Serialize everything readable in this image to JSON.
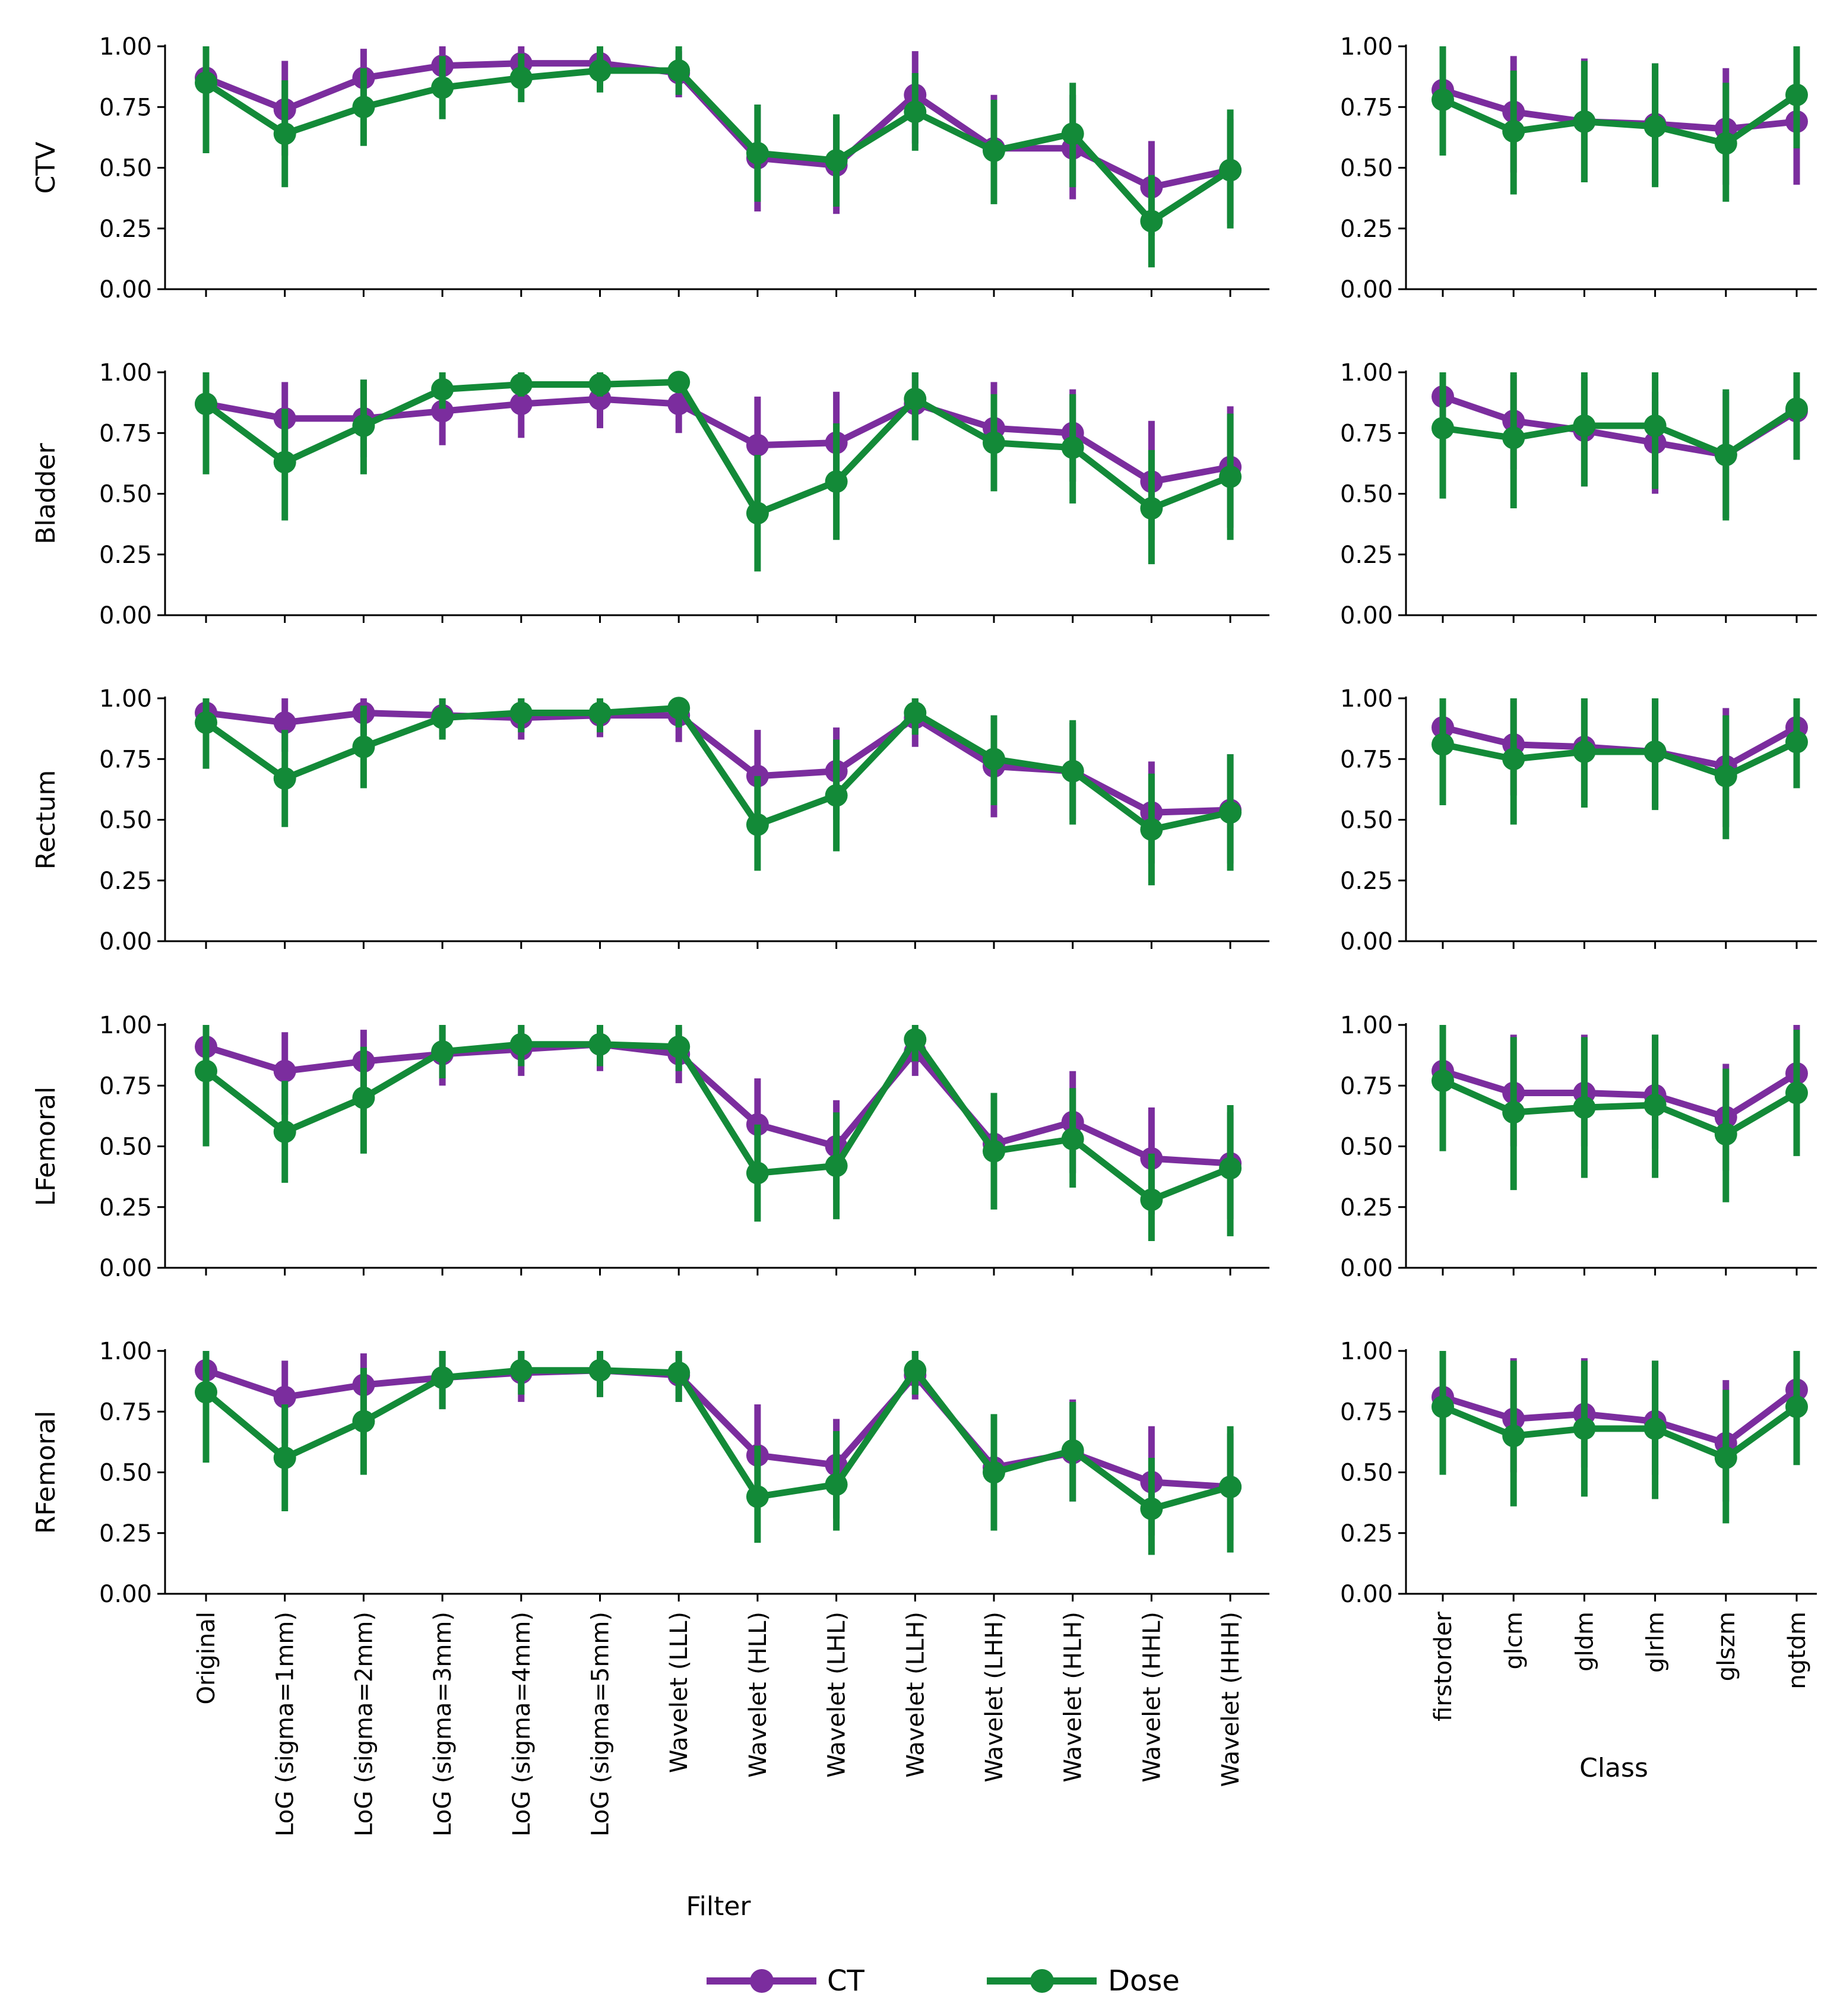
{
  "chart_data": {
    "type": "line",
    "xlabel_filter": "Filter",
    "xlabel_class": "Class",
    "legend": {
      "placement": "bottom",
      "entries": [
        {
          "label": "CT",
          "color": "#7B2D9E"
        },
        {
          "label": "Dose",
          "color": "#138A38"
        }
      ]
    },
    "ylim": [
      0,
      1
    ],
    "yticks": [
      "0.00",
      "0.25",
      "0.50",
      "0.75",
      "1.00"
    ],
    "grid": false,
    "filter_categories": [
      "Original",
      "LoG (sigma=1mm)",
      "LoG (sigma=2mm)",
      "LoG (sigma=3mm)",
      "LoG (sigma=4mm)",
      "LoG (sigma=5mm)",
      "Wavelet (LLL)",
      "Wavelet (HLL)",
      "Wavelet (LHL)",
      "Wavelet (LLH)",
      "Wavelet (LHH)",
      "Wavelet (HLH)",
      "Wavelet (HHL)",
      "Wavelet (HHH)"
    ],
    "class_categories": [
      "firstorder",
      "glcm",
      "gldm",
      "glrlm",
      "glszm",
      "ngtdm"
    ],
    "rows": [
      {
        "label": "CTV",
        "filter": {
          "CT": {
            "mean": [
              0.87,
              0.74,
              0.87,
              0.92,
              0.93,
              0.93,
              0.89,
              0.54,
              0.51,
              0.8,
              0.58,
              0.58,
              0.42,
              0.49
            ],
            "low": [
              0.6,
              0.55,
              0.72,
              0.84,
              0.86,
              0.87,
              0.79,
              0.32,
              0.31,
              0.6,
              0.37,
              0.37,
              0.22,
              0.27
            ],
            "high": [
              1.0,
              0.94,
              0.99,
              1.0,
              1.0,
              1.0,
              0.98,
              0.76,
              0.71,
              0.98,
              0.8,
              0.8,
              0.61,
              0.7
            ]
          },
          "Dose": {
            "mean": [
              0.85,
              0.64,
              0.75,
              0.83,
              0.87,
              0.9,
              0.9,
              0.56,
              0.53,
              0.73,
              0.57,
              0.64,
              0.28,
              0.49
            ],
            "low": [
              0.56,
              0.42,
              0.59,
              0.7,
              0.77,
              0.81,
              0.8,
              0.36,
              0.34,
              0.57,
              0.35,
              0.42,
              0.09,
              0.25
            ],
            "high": [
              1.0,
              0.86,
              0.91,
              0.96,
              0.97,
              1.0,
              1.0,
              0.76,
              0.72,
              0.89,
              0.78,
              0.85,
              0.47,
              0.74
            ]
          }
        },
        "class": {
          "CT": {
            "mean": [
              0.82,
              0.73,
              0.69,
              0.68,
              0.66,
              0.69
            ],
            "low": [
              0.6,
              0.48,
              0.44,
              0.43,
              0.43,
              0.43
            ],
            "high": [
              1.0,
              0.96,
              0.95,
              0.93,
              0.91,
              0.95
            ]
          },
          "Dose": {
            "mean": [
              0.78,
              0.65,
              0.69,
              0.67,
              0.6,
              0.8
            ],
            "low": [
              0.55,
              0.39,
              0.44,
              0.42,
              0.36,
              0.58
            ],
            "high": [
              1.0,
              0.9,
              0.94,
              0.93,
              0.85,
              1.0
            ]
          }
        }
      },
      {
        "label": "Bladder",
        "filter": {
          "CT": {
            "mean": [
              0.87,
              0.81,
              0.81,
              0.84,
              0.87,
              0.89,
              0.87,
              0.7,
              0.71,
              0.87,
              0.77,
              0.75,
              0.55,
              0.61
            ],
            "low": [
              0.62,
              0.64,
              0.65,
              0.7,
              0.73,
              0.77,
              0.75,
              0.47,
              0.48,
              0.72,
              0.57,
              0.55,
              0.31,
              0.36
            ],
            "high": [
              1.0,
              0.96,
              0.97,
              0.98,
              1.0,
              1.0,
              0.99,
              0.9,
              0.92,
              1.0,
              0.96,
              0.93,
              0.8,
              0.86
            ]
          },
          "Dose": {
            "mean": [
              0.87,
              0.63,
              0.78,
              0.93,
              0.95,
              0.95,
              0.96,
              0.42,
              0.55,
              0.89,
              0.71,
              0.69,
              0.44,
              0.57
            ],
            "low": [
              0.58,
              0.39,
              0.58,
              0.85,
              0.9,
              0.9,
              0.92,
              0.18,
              0.31,
              0.72,
              0.51,
              0.46,
              0.21,
              0.31
            ],
            "high": [
              1.0,
              0.85,
              0.97,
              1.0,
              1.0,
              1.0,
              1.0,
              0.66,
              0.79,
              1.0,
              0.91,
              0.91,
              0.68,
              0.83
            ]
          }
        },
        "class": {
          "CT": {
            "mean": [
              0.9,
              0.8,
              0.76,
              0.71,
              0.66,
              0.84
            ],
            "low": [
              0.72,
              0.6,
              0.53,
              0.5,
              0.4,
              0.64
            ],
            "high": [
              1.0,
              0.99,
              0.98,
              0.92,
              0.92,
              1.0
            ]
          },
          "Dose": {
            "mean": [
              0.77,
              0.73,
              0.78,
              0.78,
              0.66,
              0.85
            ],
            "low": [
              0.48,
              0.44,
              0.53,
              0.52,
              0.39,
              0.64
            ],
            "high": [
              1.0,
              1.0,
              1.0,
              1.0,
              0.93,
              1.0
            ]
          }
        }
      },
      {
        "label": "Rectum",
        "filter": {
          "CT": {
            "mean": [
              0.94,
              0.9,
              0.94,
              0.93,
              0.92,
              0.93,
              0.93,
              0.68,
              0.7,
              0.92,
              0.72,
              0.7,
              0.53,
              0.54
            ],
            "low": [
              0.8,
              0.78,
              0.85,
              0.84,
              0.83,
              0.84,
              0.82,
              0.48,
              0.5,
              0.8,
              0.51,
              0.5,
              0.32,
              0.32
            ],
            "high": [
              1.0,
              1.0,
              1.0,
              1.0,
              1.0,
              1.0,
              1.0,
              0.87,
              0.88,
              1.0,
              0.93,
              0.9,
              0.74,
              0.77
            ]
          },
          "Dose": {
            "mean": [
              0.9,
              0.67,
              0.8,
              0.92,
              0.94,
              0.94,
              0.96,
              0.48,
              0.6,
              0.94,
              0.75,
              0.7,
              0.46,
              0.53
            ],
            "low": [
              0.71,
              0.47,
              0.63,
              0.83,
              0.86,
              0.86,
              0.88,
              0.29,
              0.37,
              0.85,
              0.56,
              0.48,
              0.23,
              0.29
            ],
            "high": [
              1.0,
              0.87,
              0.97,
              1.0,
              1.0,
              1.0,
              1.0,
              0.68,
              0.83,
              1.0,
              0.93,
              0.91,
              0.69,
              0.77
            ]
          }
        },
        "class": {
          "CT": {
            "mean": [
              0.88,
              0.81,
              0.8,
              0.78,
              0.72,
              0.88
            ],
            "low": [
              0.7,
              0.6,
              0.58,
              0.55,
              0.47,
              0.7
            ],
            "high": [
              1.0,
              1.0,
              1.0,
              1.0,
              0.96,
              1.0
            ]
          },
          "Dose": {
            "mean": [
              0.81,
              0.75,
              0.78,
              0.78,
              0.68,
              0.82
            ],
            "low": [
              0.56,
              0.48,
              0.55,
              0.54,
              0.42,
              0.63
            ],
            "high": [
              1.0,
              1.0,
              1.0,
              1.0,
              0.93,
              1.0
            ]
          }
        }
      },
      {
        "label": "LFemoral",
        "filter": {
          "CT": {
            "mean": [
              0.91,
              0.81,
              0.85,
              0.88,
              0.9,
              0.92,
              0.88,
              0.59,
              0.5,
              0.89,
              0.51,
              0.6,
              0.45,
              0.43
            ],
            "low": [
              0.78,
              0.63,
              0.69,
              0.75,
              0.79,
              0.81,
              0.76,
              0.38,
              0.28,
              0.79,
              0.3,
              0.39,
              0.22,
              0.2
            ],
            "high": [
              1.0,
              0.97,
              0.98,
              1.0,
              1.0,
              1.0,
              0.99,
              0.78,
              0.69,
              0.97,
              0.72,
              0.81,
              0.66,
              0.64
            ]
          },
          "Dose": {
            "mean": [
              0.81,
              0.56,
              0.7,
              0.89,
              0.92,
              0.92,
              0.91,
              0.39,
              0.42,
              0.94,
              0.48,
              0.53,
              0.28,
              0.41
            ],
            "low": [
              0.5,
              0.35,
              0.47,
              0.78,
              0.83,
              0.83,
              0.81,
              0.19,
              0.2,
              0.85,
              0.24,
              0.33,
              0.11,
              0.13
            ],
            "high": [
              1.0,
              0.77,
              0.91,
              1.0,
              1.0,
              1.0,
              1.0,
              0.59,
              0.64,
              1.0,
              0.72,
              0.74,
              0.47,
              0.67
            ]
          }
        },
        "class": {
          "CT": {
            "mean": [
              0.81,
              0.72,
              0.72,
              0.71,
              0.62,
              0.8
            ],
            "low": [
              0.62,
              0.5,
              0.5,
              0.49,
              0.4,
              0.58
            ],
            "high": [
              1.0,
              0.96,
              0.96,
              0.96,
              0.84,
              1.0
            ]
          },
          "Dose": {
            "mean": [
              0.77,
              0.64,
              0.66,
              0.67,
              0.55,
              0.72
            ],
            "low": [
              0.48,
              0.32,
              0.37,
              0.37,
              0.27,
              0.46
            ],
            "high": [
              1.0,
              0.95,
              0.95,
              0.96,
              0.82,
              0.98
            ]
          }
        }
      },
      {
        "label": "RFemoral",
        "filter": {
          "CT": {
            "mean": [
              0.92,
              0.81,
              0.86,
              0.89,
              0.91,
              0.92,
              0.9,
              0.57,
              0.53,
              0.9,
              0.52,
              0.58,
              0.46,
              0.44
            ],
            "low": [
              0.8,
              0.62,
              0.7,
              0.76,
              0.79,
              0.81,
              0.79,
              0.36,
              0.31,
              0.8,
              0.3,
              0.38,
              0.24,
              0.22
            ],
            "high": [
              1.0,
              0.96,
              0.99,
              1.0,
              1.0,
              1.0,
              0.99,
              0.78,
              0.72,
              1.0,
              0.73,
              0.8,
              0.69,
              0.66
            ]
          },
          "Dose": {
            "mean": [
              0.83,
              0.56,
              0.71,
              0.89,
              0.92,
              0.92,
              0.91,
              0.4,
              0.45,
              0.92,
              0.5,
              0.59,
              0.35,
              0.44
            ],
            "low": [
              0.54,
              0.34,
              0.49,
              0.76,
              0.82,
              0.81,
              0.79,
              0.21,
              0.26,
              0.82,
              0.26,
              0.38,
              0.16,
              0.17
            ],
            "high": [
              1.0,
              0.78,
              0.93,
              1.0,
              1.0,
              1.0,
              1.0,
              0.61,
              0.67,
              1.0,
              0.74,
              0.79,
              0.56,
              0.69
            ]
          }
        },
        "class": {
          "CT": {
            "mean": [
              0.81,
              0.72,
              0.74,
              0.71,
              0.62,
              0.84
            ],
            "low": [
              0.62,
              0.5,
              0.52,
              0.49,
              0.38,
              0.64
            ],
            "high": [
              1.0,
              0.97,
              0.97,
              0.96,
              0.88,
              1.0
            ]
          },
          "Dose": {
            "mean": [
              0.77,
              0.65,
              0.68,
              0.68,
              0.56,
              0.77
            ],
            "low": [
              0.49,
              0.36,
              0.4,
              0.39,
              0.29,
              0.53
            ],
            "high": [
              1.0,
              0.96,
              0.96,
              0.96,
              0.84,
              1.0
            ]
          }
        }
      }
    ]
  }
}
